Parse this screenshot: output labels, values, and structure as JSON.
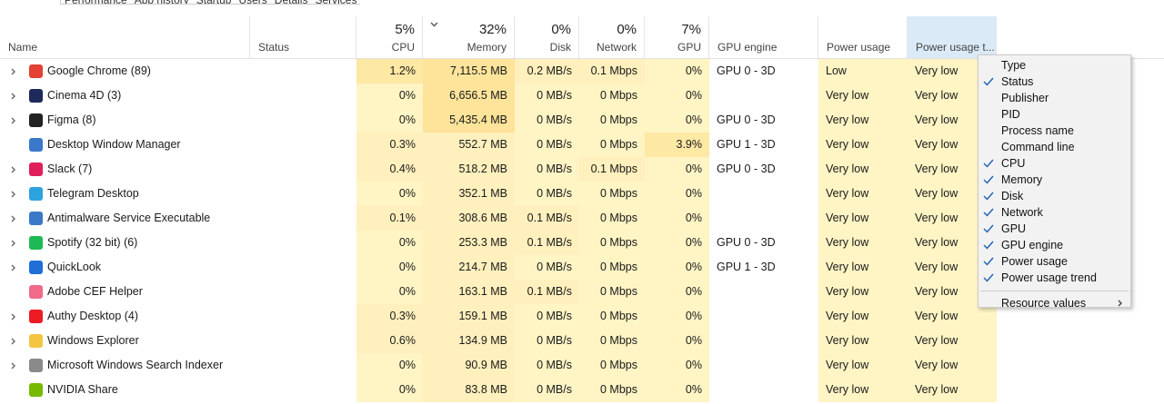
{
  "tabs": [
    "Performance",
    "App history",
    "Startup",
    "Users",
    "Details",
    "Services"
  ],
  "columns": [
    {
      "label": "Name"
    },
    {
      "label": "Status"
    },
    {
      "label": "CPU",
      "total": "5%"
    },
    {
      "label": "Memory",
      "total": "32%"
    },
    {
      "label": "Disk",
      "total": "0%"
    },
    {
      "label": "Network",
      "total": "0%"
    },
    {
      "label": "GPU",
      "total": "7%"
    },
    {
      "label": "GPU engine"
    },
    {
      "label": "Power usage"
    },
    {
      "label": "Power usage t..."
    }
  ],
  "table": {
    "rows": [
      {
        "name": "Google Chrome (89)",
        "cpu": "1.2%",
        "memory": "7,115.5 MB",
        "disk": "0.2 MB/s",
        "network": "0.1 Mbps",
        "gpu": "0%",
        "gpu_engine": "GPU 0 - 3D",
        "power": "Low",
        "power_trend": "Very low",
        "expandable": true,
        "icon_color": "#e34133"
      },
      {
        "name": "Cinema 4D (3)",
        "cpu": "0%",
        "memory": "6,656.5 MB",
        "disk": "0 MB/s",
        "network": "0 Mbps",
        "gpu": "0%",
        "gpu_engine": null,
        "power": "Very low",
        "power_trend": "Very low",
        "expandable": true,
        "icon_color": "#1d2a5a"
      },
      {
        "name": "Figma (8)",
        "cpu": "0%",
        "memory": "5,435.4 MB",
        "disk": "0 MB/s",
        "network": "0 Mbps",
        "gpu": "0%",
        "gpu_engine": "GPU 0 - 3D",
        "power": "Very low",
        "power_trend": "Very low",
        "expandable": true,
        "icon_color": "#222222"
      },
      {
        "name": "Desktop Window Manager",
        "cpu": "0.3%",
        "memory": "552.7 MB",
        "disk": "0 MB/s",
        "network": "0 Mbps",
        "gpu": "3.9%",
        "gpu_engine": "GPU 1 - 3D",
        "power": "Very low",
        "power_trend": "Very low",
        "expandable": false,
        "icon_color": "#3a78c9"
      },
      {
        "name": "Slack (7)",
        "cpu": "0.4%",
        "memory": "518.2 MB",
        "disk": "0 MB/s",
        "network": "0.1 Mbps",
        "gpu": "0%",
        "gpu_engine": "GPU 0 - 3D",
        "power": "Very low",
        "power_trend": "Very low",
        "expandable": true,
        "icon_color": "#e01e5a"
      },
      {
        "name": "Telegram Desktop",
        "cpu": "0%",
        "memory": "352.1 MB",
        "disk": "0 MB/s",
        "network": "0 Mbps",
        "gpu": "0%",
        "gpu_engine": null,
        "power": "Very low",
        "power_trend": "Very low",
        "expandable": true,
        "icon_color": "#2aa3df"
      },
      {
        "name": "Antimalware Service Executable",
        "cpu": "0.1%",
        "memory": "308.6 MB",
        "disk": "0.1 MB/s",
        "network": "0 Mbps",
        "gpu": "0%",
        "gpu_engine": null,
        "power": "Very low",
        "power_trend": "Very low",
        "expandable": true,
        "icon_color": "#3a78c9"
      },
      {
        "name": "Spotify (32 bit) (6)",
        "cpu": "0%",
        "memory": "253.3 MB",
        "disk": "0.1 MB/s",
        "network": "0 Mbps",
        "gpu": "0%",
        "gpu_engine": "GPU 0 - 3D",
        "power": "Very low",
        "power_trend": "Very low",
        "expandable": true,
        "icon_color": "#1db954"
      },
      {
        "name": "QuickLook",
        "cpu": "0%",
        "memory": "214.7 MB",
        "disk": "0 MB/s",
        "network": "0 Mbps",
        "gpu": "0%",
        "gpu_engine": "GPU 1 - 3D",
        "power": "Very low",
        "power_trend": "Very low",
        "expandable": true,
        "icon_color": "#1f6fd6"
      },
      {
        "name": "Adobe CEF Helper",
        "cpu": "0%",
        "memory": "163.1 MB",
        "disk": "0.1 MB/s",
        "network": "0 Mbps",
        "gpu": "0%",
        "gpu_engine": null,
        "power": "Very low",
        "power_trend": "Very low",
        "expandable": false,
        "icon_color": "#f06a8a"
      },
      {
        "name": "Authy Desktop (4)",
        "cpu": "0.3%",
        "memory": "159.1 MB",
        "disk": "0 MB/s",
        "network": "0 Mbps",
        "gpu": "0%",
        "gpu_engine": null,
        "power": "Very low",
        "power_trend": "Very low",
        "expandable": true,
        "icon_color": "#ec1c24"
      },
      {
        "name": "Windows Explorer",
        "cpu": "0.6%",
        "memory": "134.9 MB",
        "disk": "0 MB/s",
        "network": "0 Mbps",
        "gpu": "0%",
        "gpu_engine": null,
        "power": "Very low",
        "power_trend": "Very low",
        "expandable": true,
        "icon_color": "#f4c542"
      },
      {
        "name": "Microsoft Windows Search Indexer",
        "cpu": "0%",
        "memory": "90.9 MB",
        "disk": "0 MB/s",
        "network": "0 Mbps",
        "gpu": "0%",
        "gpu_engine": null,
        "power": "Very low",
        "power_trend": "Very low",
        "expandable": true,
        "icon_color": "#8a8a8a"
      },
      {
        "name": "NVIDIA Share",
        "cpu": "0%",
        "memory": "83.8 MB",
        "disk": "0 MB/s",
        "network": "0 Mbps",
        "gpu": "0%",
        "gpu_engine": null,
        "power": "Very low",
        "power_trend": "Very low",
        "expandable": false,
        "icon_color": "#76b900"
      }
    ]
  },
  "menu": {
    "items": [
      {
        "label": "Type",
        "checked": false
      },
      {
        "label": "Status",
        "checked": true
      },
      {
        "label": "Publisher",
        "checked": false
      },
      {
        "label": "PID",
        "checked": false
      },
      {
        "label": "Process name",
        "checked": false
      },
      {
        "label": "Command line",
        "checked": false
      },
      {
        "label": "CPU",
        "checked": true
      },
      {
        "label": "Memory",
        "checked": true
      },
      {
        "label": "Disk",
        "checked": true
      },
      {
        "label": "Network",
        "checked": true
      },
      {
        "label": "GPU",
        "checked": true
      },
      {
        "label": "GPU engine",
        "checked": true
      },
      {
        "label": "Power usage",
        "checked": true
      },
      {
        "label": "Power usage trend",
        "checked": true
      }
    ],
    "submenu": "Resource values"
  }
}
